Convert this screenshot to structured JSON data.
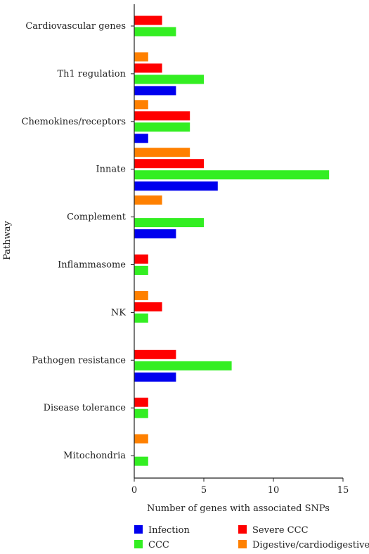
{
  "chart_data": {
    "type": "bar",
    "orientation": "horizontal",
    "xlabel": "Number of genes with associated SNPs",
    "ylabel": "Pathway",
    "xlim": [
      0,
      15
    ],
    "xticks": [
      0,
      5,
      10,
      15
    ],
    "grid": false,
    "legend_position": "bottom",
    "categories": [
      "Cardiovascular genes",
      "Th1 regulation",
      "Chemokines/receptors",
      "Innate",
      "Complement",
      "Inflammasome",
      "NK",
      "Pathogen resistance",
      "Disease tolerance",
      "Mitochondria"
    ],
    "series": [
      {
        "name": "Digestive/cardiodigestive",
        "color": "#ff8000",
        "values": [
          0,
          1,
          1,
          4,
          2,
          0,
          1,
          0,
          0,
          1
        ]
      },
      {
        "name": "Severe CCC",
        "color": "#ff0000",
        "values": [
          2,
          2,
          4,
          5,
          0,
          1,
          2,
          3,
          1,
          0
        ]
      },
      {
        "name": "CCC",
        "color": "#33ee22",
        "values": [
          3,
          5,
          4,
          14,
          5,
          1,
          1,
          7,
          1,
          1
        ]
      },
      {
        "name": "Infection",
        "color": "#0000ee",
        "values": [
          0,
          3,
          1,
          6,
          3,
          0,
          0,
          3,
          0,
          0
        ]
      }
    ],
    "legend": [
      {
        "name": "Infection",
        "color": "#0000ee"
      },
      {
        "name": "Severe CCC",
        "color": "#ff0000"
      },
      {
        "name": "CCC",
        "color": "#33ee22"
      },
      {
        "name": "Digestive/cardiodigestive",
        "color": "#ff8000"
      }
    ]
  }
}
